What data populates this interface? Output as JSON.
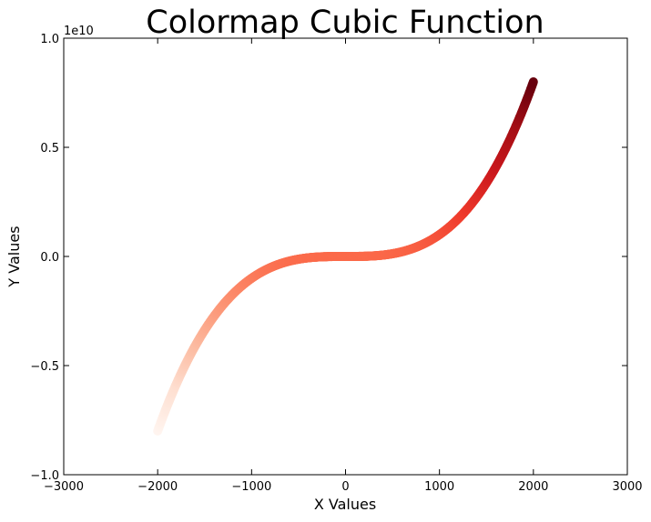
{
  "chart_data": {
    "type": "scatter",
    "title": "Colormap Cubic Function",
    "xlabel": "X Values",
    "ylabel": "Y Values",
    "xlim": [
      -3000,
      3000
    ],
    "ylim": [
      -10000000000,
      10000000000
    ],
    "y_offset_text": "1e10",
    "x_ticks": [
      -3000,
      -2000,
      -1000,
      0,
      1000,
      2000,
      3000
    ],
    "x_tick_labels": [
      "−3000",
      "−2000",
      "−1000",
      "0",
      "1000",
      "2000",
      "3000"
    ],
    "y_ticks": [
      -10000000000,
      -5000000000,
      0,
      5000000000,
      10000000000
    ],
    "y_tick_labels": [
      "−1.0",
      "−0.5",
      "0.0",
      "0.5",
      "1.0"
    ],
    "function": "y = x^3",
    "x_range": [
      -2000,
      2000
    ],
    "colormap": "Reds",
    "color_value": "y",
    "grid": false,
    "legend": "none",
    "colors": {
      "low": "#fff5f0",
      "mid": "#fb6a4a",
      "high": "#67000d"
    }
  }
}
